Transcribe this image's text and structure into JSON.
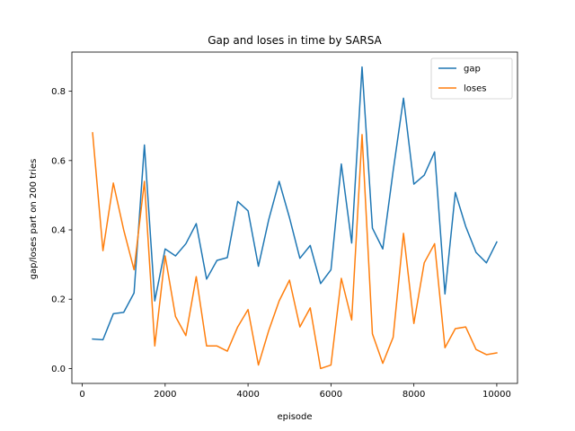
{
  "chart_data": {
    "type": "line",
    "title": "Gap and loses in time by SARSA",
    "xlabel": "episode",
    "ylabel": "gap/loses part on 200 tries",
    "xlim": [
      -250,
      10500
    ],
    "ylim": [
      -0.043,
      0.913
    ],
    "xticks": [
      0,
      2000,
      4000,
      6000,
      8000,
      10000
    ],
    "yticks": [
      0.0,
      0.2,
      0.4,
      0.6,
      0.8
    ],
    "ytick_labels": [
      "0.0",
      "0.2",
      "0.4",
      "0.6",
      "0.8"
    ],
    "grid": false,
    "legend_position": "top-right",
    "x": [
      250,
      500,
      750,
      1000,
      1250,
      1500,
      1750,
      2000,
      2250,
      2500,
      2750,
      3000,
      3250,
      3500,
      3750,
      4000,
      4250,
      4500,
      4750,
      5000,
      5250,
      5500,
      5750,
      6000,
      6250,
      6500,
      6750,
      7000,
      7250,
      7500,
      7750,
      8000,
      8250,
      8500,
      8750,
      9000,
      9250,
      9500,
      9750,
      10000
    ],
    "series": [
      {
        "name": "gap",
        "color": "#1f77b4",
        "values": [
          0.085,
          0.083,
          0.158,
          0.162,
          0.218,
          0.645,
          0.195,
          0.345,
          0.325,
          0.36,
          0.418,
          0.258,
          0.312,
          0.32,
          0.482,
          0.455,
          0.295,
          0.43,
          0.54,
          0.435,
          0.318,
          0.355,
          0.245,
          0.285,
          0.59,
          0.362,
          0.87,
          0.405,
          0.345,
          0.57,
          0.78,
          0.532,
          0.558,
          0.625,
          0.215,
          0.508,
          0.41,
          0.335,
          0.305,
          0.365
        ]
      },
      {
        "name": "loses",
        "color": "#ff7f0e",
        "values": [
          0.68,
          0.34,
          0.535,
          0.4,
          0.285,
          0.54,
          0.065,
          0.325,
          0.15,
          0.095,
          0.265,
          0.065,
          0.065,
          0.05,
          0.12,
          0.17,
          0.01,
          0.11,
          0.195,
          0.255,
          0.12,
          0.175,
          0.0,
          0.01,
          0.26,
          0.14,
          0.675,
          0.1,
          0.015,
          0.09,
          0.39,
          0.13,
          0.305,
          0.36,
          0.06,
          0.115,
          0.12,
          0.055,
          0.04,
          0.045
        ]
      }
    ]
  }
}
